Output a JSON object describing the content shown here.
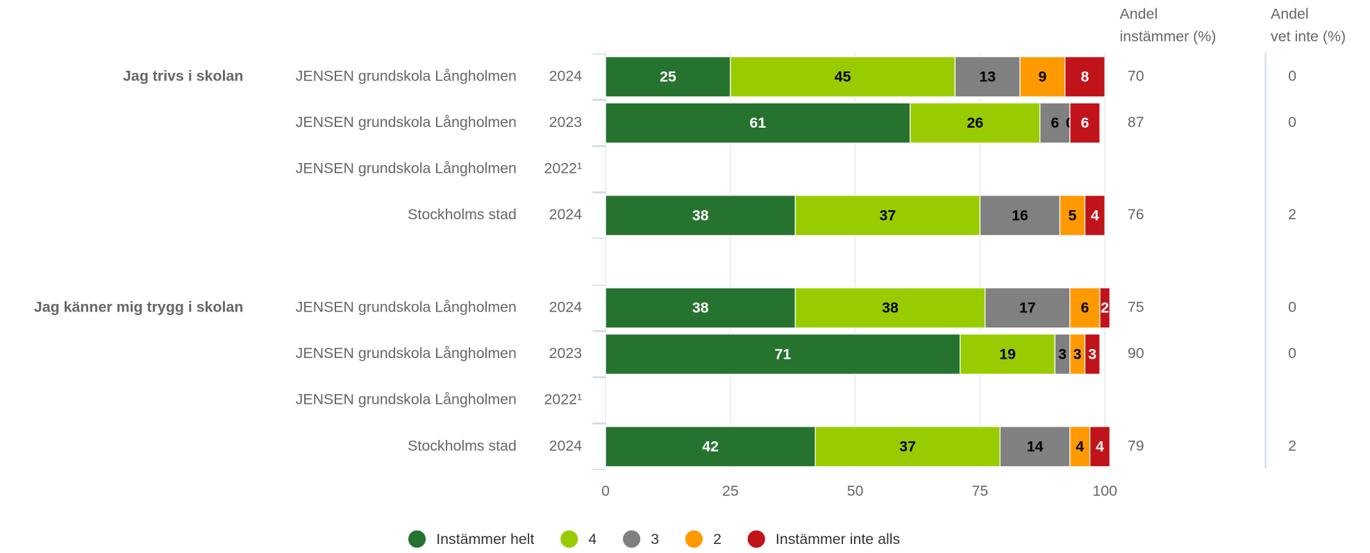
{
  "chart_data": {
    "type": "stacked-bar",
    "groups": [
      {
        "name": "Jag trivs i skolan",
        "schools": [
          "JENSEN grundskola Långholmen",
          "JENSEN grundskola Långholmen",
          "JENSEN grundskola Långholmen",
          "Stockholms stad"
        ],
        "years": [
          "2024",
          "2023",
          "2022¹",
          "2024"
        ]
      },
      {
        "name": "Jag känner mig trygg i skolan",
        "schools": [
          "JENSEN grundskola Långholmen",
          "JENSEN grundskola Långholmen",
          "JENSEN grundskola Långholmen",
          "Stockholms stad"
        ],
        "years": [
          "2024",
          "2023",
          "2022¹",
          "2024"
        ]
      }
    ],
    "series": [
      {
        "name": "Instämmer helt",
        "color": "#267330",
        "label_color": "#ffffff",
        "values": [
          25,
          61,
          null,
          38,
          38,
          71,
          null,
          42
        ]
      },
      {
        "name": "4",
        "color": "#99cc00",
        "label_color": "#000000",
        "values": [
          45,
          26,
          null,
          37,
          38,
          19,
          null,
          37
        ]
      },
      {
        "name": "3",
        "color": "#808080",
        "label_color": "#000000",
        "values": [
          13,
          6,
          null,
          16,
          17,
          3,
          null,
          14
        ]
      },
      {
        "name": "2",
        "color": "#ff9900",
        "label_color": "#000000",
        "values": [
          9,
          0,
          null,
          5,
          6,
          3,
          null,
          4
        ]
      },
      {
        "name": "Instämmer inte alls",
        "color": "#c0141a",
        "label_color": "#ffffff",
        "values": [
          8,
          6,
          null,
          4,
          2,
          3,
          null,
          4
        ]
      }
    ],
    "columns": [
      {
        "title": [
          "Andel",
          "instämmer (%)"
        ],
        "values": [
          70,
          87,
          null,
          76,
          75,
          90,
          null,
          79
        ]
      },
      {
        "title": [
          "Andel",
          "vet inte (%)"
        ],
        "values": [
          0,
          0,
          null,
          2,
          0,
          0,
          null,
          2
        ]
      }
    ],
    "xlim": [
      0,
      100
    ],
    "xticks": [
      0,
      25,
      50,
      75,
      100
    ],
    "grid": true,
    "legend": "bottom"
  }
}
